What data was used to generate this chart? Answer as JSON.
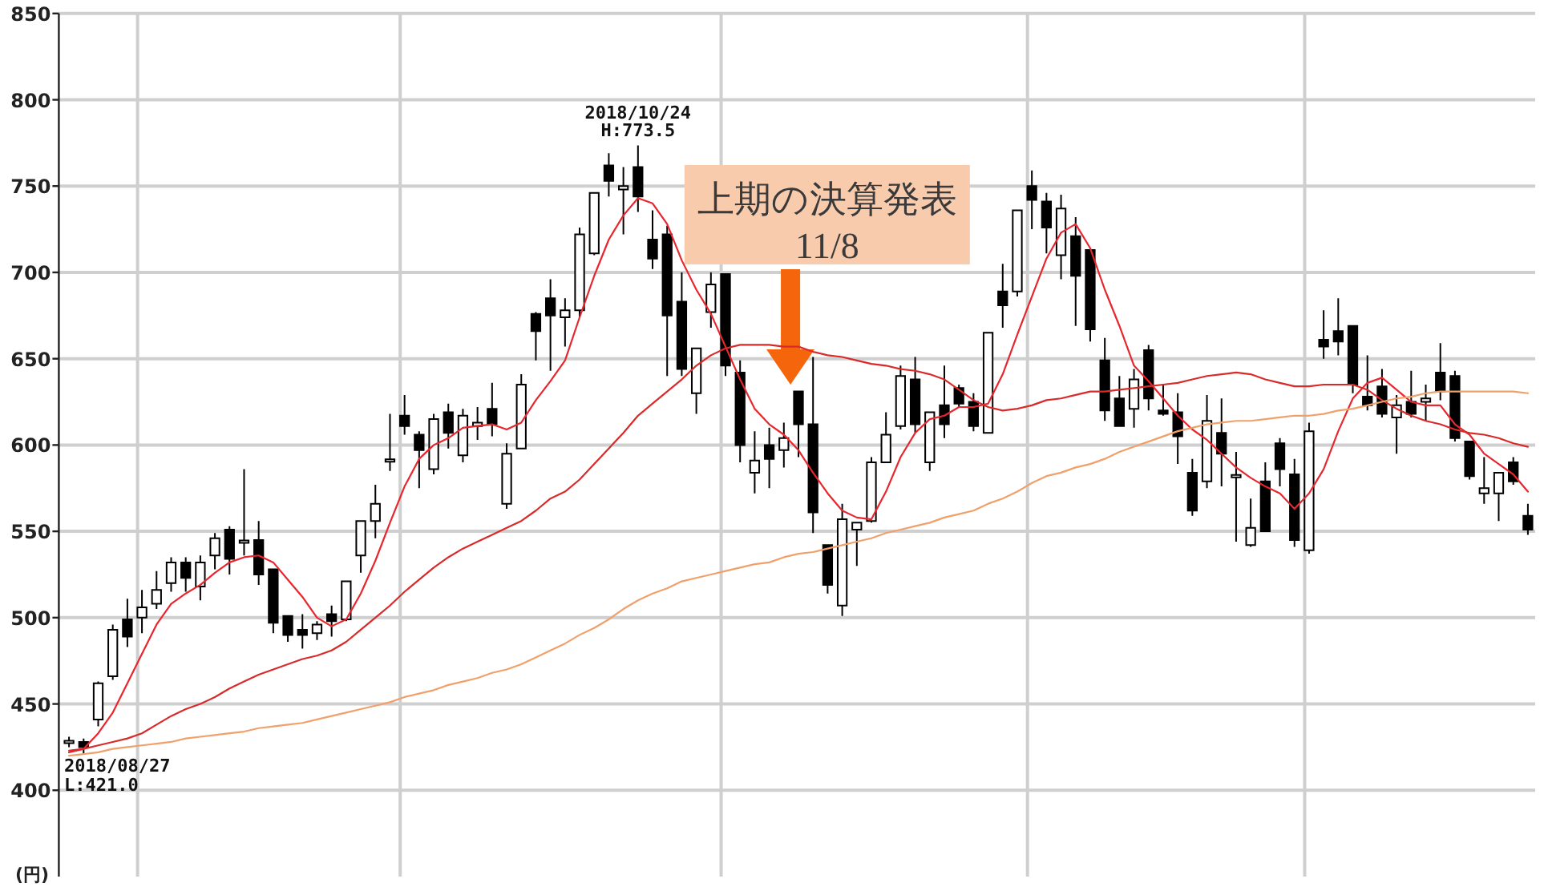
{
  "chart_data": {
    "type": "candlestick",
    "categories": [
      null,
      null,
      null,
      null,
      null,
      null,
      null,
      null,
      null,
      null,
      null,
      null,
      null,
      null,
      null,
      null,
      null,
      null,
      null,
      null,
      null,
      null,
      null,
      null,
      null,
      null,
      null,
      null,
      null,
      null,
      null,
      null,
      null,
      null,
      null,
      null,
      null,
      null,
      null,
      null,
      null,
      null,
      null,
      null,
      null,
      null,
      null,
      null,
      null,
      null,
      null,
      null,
      null,
      null,
      null,
      null,
      null,
      null,
      null,
      null,
      null,
      null,
      null,
      null,
      null,
      null,
      null,
      null,
      null,
      null,
      null,
      null,
      null,
      null,
      null,
      null,
      null,
      null,
      null,
      null,
      null,
      null,
      null,
      null,
      null,
      null,
      null,
      null,
      null,
      null,
      null,
      null,
      null,
      null,
      null,
      null,
      null,
      null,
      null,
      null,
      null
    ],
    "ohlc": [
      [
        428,
        431,
        425,
        428
      ],
      [
        428,
        430,
        421.0,
        425
      ],
      [
        441,
        463,
        437,
        462
      ],
      [
        466,
        496,
        464,
        493
      ],
      [
        499,
        511,
        483,
        489
      ],
      [
        500,
        516,
        491,
        506
      ],
      [
        508,
        527,
        505,
        516
      ],
      [
        520,
        535,
        515,
        532
      ],
      [
        532,
        535,
        515,
        523
      ],
      [
        518,
        536,
        510,
        532
      ],
      [
        536,
        549,
        528,
        546
      ],
      [
        551,
        553,
        525,
        534
      ],
      [
        544,
        586,
        536,
        544
      ],
      [
        545,
        556,
        519,
        525
      ],
      [
        528,
        528,
        491,
        497
      ],
      [
        501,
        501,
        486,
        490
      ],
      [
        493,
        502,
        482,
        490
      ],
      [
        491,
        498,
        487,
        496
      ],
      [
        502,
        507,
        489,
        498
      ],
      [
        499,
        521,
        498,
        521
      ],
      [
        536,
        556,
        526,
        556
      ],
      [
        556,
        577,
        546,
        566
      ],
      [
        591,
        618,
        585,
        591
      ],
      [
        617,
        629,
        606,
        611
      ],
      [
        606,
        608,
        575,
        597
      ],
      [
        586,
        618,
        583,
        615
      ],
      [
        619,
        624,
        598,
        607
      ],
      [
        594,
        621,
        590,
        617
      ],
      [
        611,
        622,
        603,
        613
      ],
      [
        621,
        636,
        605,
        612
      ],
      [
        566,
        601,
        563,
        595
      ],
      [
        598,
        641,
        598,
        635
      ],
      [
        676,
        677,
        649,
        666
      ],
      [
        685,
        696,
        643,
        675
      ],
      [
        674,
        685,
        657,
        678
      ],
      [
        678,
        726,
        674,
        722
      ],
      [
        711,
        746,
        710,
        746
      ],
      [
        762,
        769,
        744,
        753
      ],
      [
        748,
        761,
        722,
        750
      ],
      [
        761,
        773.5,
        735,
        744
      ],
      [
        719,
        736,
        702,
        708
      ],
      [
        722,
        727,
        640,
        675
      ],
      [
        683,
        700,
        640,
        644
      ],
      [
        630,
        656,
        618,
        656
      ],
      [
        677,
        700,
        668,
        693
      ],
      [
        699,
        699,
        640,
        646
      ],
      [
        642,
        649,
        590,
        600
      ],
      [
        584,
        608,
        572,
        591
      ],
      [
        600,
        610,
        575,
        592
      ],
      [
        597,
        613,
        587,
        604
      ],
      [
        631,
        631,
        593,
        612
      ],
      [
        612,
        651,
        549,
        561
      ],
      [
        542,
        542,
        514,
        519
      ],
      [
        507,
        566,
        501,
        557
      ],
      [
        551,
        555,
        530,
        555
      ],
      [
        556,
        593,
        555,
        590
      ],
      [
        590,
        619,
        590,
        606
      ],
      [
        611,
        646,
        609,
        640
      ],
      [
        638,
        651,
        607,
        612
      ],
      [
        590,
        619,
        585,
        619
      ],
      [
        623,
        646,
        604,
        612
      ],
      [
        633,
        635,
        622,
        624
      ],
      [
        625,
        630,
        608,
        611
      ],
      [
        607,
        665,
        607,
        665
      ],
      [
        689,
        705,
        668,
        681
      ],
      [
        689,
        736,
        686,
        736
      ],
      [
        750,
        759,
        725,
        742
      ],
      [
        741,
        746,
        711,
        726
      ],
      [
        710,
        745,
        696,
        737
      ],
      [
        721,
        732,
        669,
        698
      ],
      [
        713,
        713,
        660,
        667
      ],
      [
        649,
        662,
        614,
        620
      ],
      [
        627,
        640,
        611,
        611
      ],
      [
        621,
        644,
        610,
        638
      ],
      [
        655,
        658,
        620,
        627
      ],
      [
        620,
        635,
        617,
        618
      ],
      [
        619,
        630,
        589,
        605
      ],
      [
        584,
        592,
        559,
        562
      ],
      [
        579,
        629,
        575,
        614
      ],
      [
        607,
        627,
        576,
        595
      ],
      [
        582,
        596,
        544,
        582
      ],
      [
        542,
        569,
        541,
        552
      ],
      [
        579,
        590,
        550,
        550
      ],
      [
        601,
        604,
        576,
        586
      ],
      [
        583,
        592,
        541,
        545
      ],
      [
        539,
        613,
        537,
        608
      ],
      [
        661,
        678,
        650,
        657
      ],
      [
        666,
        685,
        652,
        660
      ],
      [
        669,
        669,
        630,
        635
      ],
      [
        628,
        652,
        620,
        623
      ],
      [
        634,
        644,
        616,
        618
      ],
      [
        616,
        629,
        595,
        623
      ],
      [
        625,
        643,
        616,
        618
      ],
      [
        625,
        635,
        614,
        627
      ],
      [
        642,
        659,
        626,
        631
      ],
      [
        640,
        643,
        602,
        604
      ],
      [
        602,
        602,
        580,
        582
      ],
      [
        572,
        593,
        566,
        575
      ],
      [
        572,
        584,
        556,
        584
      ],
      [
        590,
        593,
        577,
        579
      ],
      [
        559,
        566,
        548,
        551
      ]
    ],
    "series": [
      {
        "type": "line",
        "color": "#e8262e",
        "values": [
          423,
          424,
          433,
          445,
          462,
          479,
          496,
          508,
          514,
          519,
          526,
          532,
          535,
          536,
          532,
          522,
          512,
          500,
          495,
          499,
          514,
          533,
          555,
          576,
          592,
          600,
          604,
          610,
          611,
          612,
          609,
          613,
          626,
          637,
          649,
          674,
          698,
          719,
          733,
          743,
          740,
          728,
          707,
          690,
          676,
          657,
          638,
          621,
          612,
          606,
          597,
          584,
          572,
          562,
          558,
          557,
          573,
          593,
          607,
          615,
          617,
          622,
          622,
          624,
          641,
          664,
          686,
          708,
          723,
          728,
          714,
          690,
          669,
          646,
          637,
          627,
          617,
          609,
          603,
          595,
          587,
          581,
          576,
          572,
          563,
          572,
          586,
          608,
          627,
          636,
          639,
          632,
          625,
          623,
          623,
          612,
          606,
          595,
          589,
          583,
          573
        ]
      },
      {
        "type": "line",
        "color": "#d92a2a",
        "values": [
          422,
          424,
          426,
          428,
          430,
          433,
          438,
          443,
          447,
          450,
          454,
          459,
          463,
          467,
          470,
          473,
          476,
          478,
          481,
          486,
          493,
          500,
          507,
          515,
          522,
          529,
          535,
          540,
          544,
          548,
          552,
          556,
          562,
          569,
          573,
          580,
          589,
          598,
          607,
          617,
          624,
          631,
          638,
          646,
          652,
          656,
          658,
          658,
          658,
          657,
          657,
          654,
          652,
          651,
          649,
          647,
          646,
          644,
          643,
          641,
          638,
          632,
          626,
          622,
          620,
          621,
          623,
          626,
          627,
          629,
          631,
          631,
          632,
          633,
          634,
          635,
          636,
          638,
          640,
          641,
          642,
          641,
          638,
          636,
          634,
          634,
          635,
          635,
          635,
          632,
          626,
          621,
          617,
          614,
          612,
          609,
          607,
          606,
          604,
          601,
          599
        ]
      },
      {
        "type": "line",
        "color": "#f0a06a",
        "values": [
          420,
          421,
          422,
          424,
          425,
          426,
          427,
          428,
          430,
          431,
          432,
          433,
          434,
          436,
          437,
          438,
          439,
          441,
          443,
          445,
          447,
          449,
          451,
          454,
          456,
          458,
          461,
          463,
          465,
          468,
          470,
          473,
          477,
          481,
          485,
          490,
          494,
          499,
          505,
          510,
          514,
          517,
          521,
          523,
          525,
          527,
          529,
          531,
          532,
          535,
          537,
          538,
          540,
          542,
          544,
          546,
          549,
          551,
          553,
          555,
          558,
          560,
          562,
          566,
          569,
          573,
          578,
          582,
          584,
          587,
          589,
          592,
          596,
          599,
          602,
          605,
          608,
          610,
          612,
          613,
          614,
          614,
          615,
          616,
          617,
          617,
          618,
          620,
          621,
          623,
          625,
          627,
          628,
          630,
          631,
          631,
          631,
          631,
          631,
          631,
          630
        ]
      }
    ],
    "ylim": [
      350,
      850
    ],
    "yticks": [
      400,
      450,
      500,
      550,
      600,
      650,
      700,
      750,
      800,
      850
    ],
    "ylabel": "(円)",
    "tick_labels": "y",
    "grid": true,
    "annotations": [
      {
        "text": "2018/08/27",
        "y": 421.0
      },
      {
        "text": "L:421.0",
        "y": 421.0
      },
      {
        "text": "2018/10/24",
        "y": 773.5
      },
      {
        "text": "H:773.5",
        "y": 773.5
      },
      "上期の決算発表",
      "11/8"
    ]
  }
}
